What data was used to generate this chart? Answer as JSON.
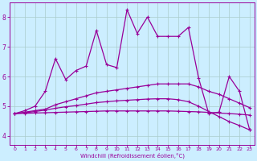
{
  "xlabel": "Windchill (Refroidissement éolien,°C)",
  "background_color": "#cceeff",
  "grid_color": "#aacccc",
  "line_color": "#990099",
  "xlim": [
    -0.5,
    23.5
  ],
  "ylim": [
    3.7,
    8.5
  ],
  "yticks": [
    4,
    5,
    6,
    7,
    8
  ],
  "xticks": [
    0,
    1,
    2,
    3,
    4,
    5,
    6,
    7,
    8,
    9,
    10,
    11,
    12,
    13,
    14,
    15,
    16,
    17,
    18,
    19,
    20,
    21,
    22,
    23
  ],
  "series1_x": [
    0,
    1,
    2,
    3,
    4,
    5,
    6,
    7,
    8,
    9,
    10,
    11,
    12,
    13,
    14,
    15,
    16,
    17,
    18,
    19,
    20,
    21,
    22,
    23
  ],
  "series1_y": [
    4.75,
    4.85,
    5.0,
    5.5,
    6.6,
    5.9,
    6.2,
    6.35,
    7.55,
    6.4,
    6.3,
    8.25,
    7.45,
    8.0,
    7.35,
    7.35,
    7.35,
    7.65,
    5.95,
    4.75,
    4.8,
    6.0,
    5.5,
    4.2
  ],
  "series2_x": [
    0,
    1,
    2,
    3,
    4,
    5,
    6,
    7,
    8,
    9,
    10,
    11,
    12,
    13,
    14,
    15,
    16,
    17,
    18,
    19,
    20,
    21,
    22,
    23
  ],
  "series2_y": [
    4.75,
    4.8,
    4.85,
    4.9,
    5.05,
    5.15,
    5.25,
    5.35,
    5.45,
    5.5,
    5.55,
    5.6,
    5.65,
    5.7,
    5.75,
    5.75,
    5.75,
    5.75,
    5.65,
    5.5,
    5.4,
    5.25,
    5.1,
    4.95
  ],
  "series3_x": [
    0,
    1,
    2,
    3,
    4,
    5,
    6,
    7,
    8,
    9,
    10,
    11,
    12,
    13,
    14,
    15,
    16,
    17,
    18,
    19,
    20,
    21,
    22,
    23
  ],
  "series3_y": [
    4.75,
    4.78,
    4.82,
    4.87,
    4.93,
    4.98,
    5.02,
    5.07,
    5.12,
    5.15,
    5.18,
    5.2,
    5.22,
    5.24,
    5.25,
    5.25,
    5.22,
    5.15,
    5.0,
    4.82,
    4.65,
    4.48,
    4.35,
    4.2
  ],
  "series4_x": [
    0,
    1,
    2,
    3,
    4,
    5,
    6,
    7,
    8,
    9,
    10,
    11,
    12,
    13,
    14,
    15,
    16,
    17,
    18,
    19,
    20,
    21,
    22,
    23
  ],
  "series4_y": [
    4.75,
    4.76,
    4.77,
    4.78,
    4.79,
    4.8,
    4.81,
    4.82,
    4.83,
    4.84,
    4.84,
    4.84,
    4.84,
    4.84,
    4.84,
    4.84,
    4.83,
    4.82,
    4.81,
    4.79,
    4.77,
    4.75,
    4.73,
    4.7
  ]
}
